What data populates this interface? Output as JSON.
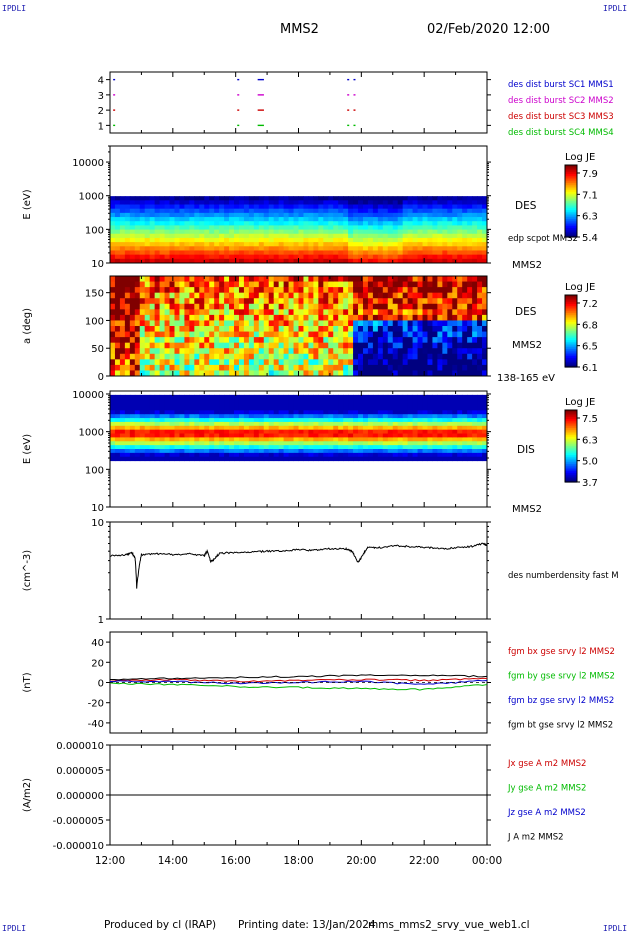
{
  "corner_label": "IPDLI",
  "header": {
    "spacecraft": "MMS2",
    "datetime": "02/Feb/2020 12:00"
  },
  "footer": {
    "produced": "Produced by cl (IRAP)",
    "printing": "Printing date: 13/Jan/2024",
    "file": "mms_mms2_srvy_vue_web1.cl"
  },
  "chart_data": [
    {
      "type": "scatter",
      "id": "burst",
      "ylim": [
        0.5,
        4.5
      ],
      "yticks": [
        "1",
        "2",
        "3",
        "4"
      ],
      "legend": [
        {
          "label": "des dist burst SC1 MMS1",
          "color": "#0000cc"
        },
        {
          "label": "des dist burst SC2 MMS2",
          "color": "#cc00cc"
        },
        {
          "label": "des dist burst SC3 MMS3",
          "color": "#cc0000"
        },
        {
          "label": "des dist burst SC4 MMS4",
          "color": "#00bb00"
        }
      ],
      "intervals_hours": [
        [
          12.1,
          12.15
        ],
        [
          16.05,
          16.1
        ],
        [
          16.7,
          16.9
        ],
        [
          19.55,
          19.6
        ],
        [
          19.75,
          19.8
        ]
      ]
    },
    {
      "type": "heatmap",
      "id": "des-energy",
      "ylabel": "E (eV)",
      "yscale": "log",
      "ylim": [
        10,
        30000
      ],
      "yticks": [
        "10",
        "100",
        "1000",
        "10000"
      ],
      "labels": [
        "DES",
        "edp scpot MMS2",
        "MMS2"
      ],
      "colorbar": {
        "title": "Log JE",
        "ticks": [
          "7.9",
          "7.1",
          "6.3",
          "5.4"
        ]
      }
    },
    {
      "type": "heatmap",
      "id": "des-pitch",
      "ylabel": "a (deg)",
      "ylim": [
        0,
        180
      ],
      "yticks": [
        "0",
        "50",
        "100",
        "150"
      ],
      "labels": [
        "DES",
        "MMS2",
        "138-165 eV"
      ],
      "colorbar": {
        "title": "Log JE",
        "ticks": [
          "7.2",
          "6.8",
          "6.5",
          "6.1"
        ]
      }
    },
    {
      "type": "heatmap",
      "id": "dis-energy",
      "ylabel": "E (eV)",
      "yscale": "log",
      "ylim": [
        10,
        12000
      ],
      "yticks": [
        "10",
        "100",
        "1000",
        "10000"
      ],
      "labels": [
        "DIS",
        "MMS2"
      ],
      "colorbar": {
        "title": "Log JE",
        "ticks": [
          "7.5",
          "6.3",
          "5.0",
          "3.7"
        ]
      }
    },
    {
      "type": "line",
      "id": "density",
      "ylabel": "(cm^-3)",
      "yscale": "log",
      "ylim": [
        1,
        10
      ],
      "yticks": [
        "1",
        "10"
      ],
      "series": [
        {
          "name": "des numberdensity fast M",
          "color": "#000000",
          "x": [
            12.0,
            12.5,
            12.7,
            12.8,
            12.85,
            13.0,
            13.5,
            14.0,
            14.5,
            15.0,
            15.1,
            15.2,
            15.3,
            15.5,
            16.0,
            16.5,
            17.0,
            17.5,
            18.0,
            18.5,
            19.0,
            19.5,
            19.7,
            19.9,
            20.0,
            20.2,
            20.5,
            21.0,
            21.5,
            22.0,
            22.5,
            23.0,
            23.5,
            23.9,
            24.0
          ],
          "y": [
            4.5,
            4.6,
            4.8,
            4.2,
            2.1,
            4.6,
            4.7,
            4.6,
            4.7,
            4.5,
            5.0,
            3.9,
            4.1,
            4.8,
            4.8,
            4.9,
            5.0,
            5.0,
            5.2,
            5.1,
            5.3,
            5.3,
            5.0,
            3.8,
            4.3,
            5.5,
            5.4,
            5.7,
            5.6,
            5.5,
            5.3,
            5.4,
            5.6,
            6.0,
            5.7
          ]
        }
      ]
    },
    {
      "type": "line",
      "id": "magnetic",
      "ylabel": "(nT)",
      "ylim": [
        -50,
        50
      ],
      "yticks": [
        "-40",
        "-20",
        "0",
        "20",
        "40"
      ],
      "series": [
        {
          "name": "fgm bx gse srvy l2 MMS2",
          "color": "#cc0000",
          "x": [
            12,
            14,
            16,
            18,
            20,
            22,
            24
          ],
          "y": [
            2,
            3,
            1,
            2,
            3,
            2,
            4
          ]
        },
        {
          "name": "fgm by gse srvy l2 MMS2",
          "color": "#00bb00",
          "x": [
            12,
            14,
            16,
            18,
            20,
            22,
            24
          ],
          "y": [
            -1,
            -2,
            -4,
            -5,
            -6,
            -7,
            -2
          ]
        },
        {
          "name": "fgm bz gse srvy l2 MMS2",
          "color": "#0000cc",
          "x": [
            12,
            14,
            16,
            18,
            20,
            22,
            24
          ],
          "y": [
            1,
            1,
            -1,
            0,
            1,
            -2,
            2
          ]
        },
        {
          "name": "fgm bt gse srvy l2 MMS2",
          "color": "#000000",
          "x": [
            12,
            14,
            16,
            18,
            20,
            22,
            24
          ],
          "y": [
            3,
            4,
            5,
            6,
            7,
            7,
            6
          ]
        }
      ]
    },
    {
      "type": "line",
      "id": "current",
      "ylabel": "(A/m2)",
      "ylim": [
        -1e-05,
        1e-05
      ],
      "yticks": [
        "-0.000010",
        "-0.000005",
        "0.000000",
        "0.000005",
        "0.000010"
      ],
      "xticks": [
        "12:00",
        "14:00",
        "16:00",
        "18:00",
        "20:00",
        "22:00",
        "00:00"
      ],
      "series": [
        {
          "name": "Jx gse A m2 MMS2",
          "color": "#cc0000",
          "x": [
            12,
            24
          ],
          "y": [
            0,
            0
          ]
        },
        {
          "name": "Jy gse A m2 MMS2",
          "color": "#00bb00",
          "x": [
            12,
            24
          ],
          "y": [
            0,
            0
          ]
        },
        {
          "name": "Jz gse A m2 MMS2",
          "color": "#0000cc",
          "x": [
            12,
            24
          ],
          "y": [
            0,
            0
          ]
        },
        {
          "name": "J A m2 MMS2",
          "color": "#000000",
          "x": [
            12,
            24
          ],
          "y": [
            0,
            0
          ]
        }
      ]
    }
  ]
}
